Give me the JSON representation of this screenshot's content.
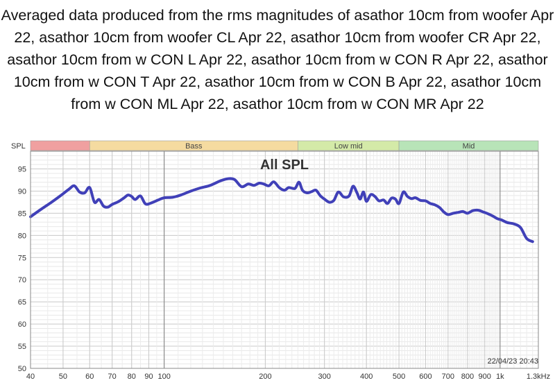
{
  "chart_data": {
    "type": "line",
    "title": "Averaged data produced from the rms magnitudes of asathor 10cm from woofer Apr 22, asathor 10cm from woofer CL Apr 22, asathor 10cm from woofer CR Apr 22, asathor 10cm from w CON L Apr 22, asathor 10cm from w CON R Apr 22, asathor 10cm from w CON T Apr 22, asathor 10cm from w CON B Apr 22, asathor 10cm from w CON ML Apr 22, asathor 10cm from w CON MR Apr 22",
    "plot_label": "All SPL",
    "ylabel": "SPL",
    "x_scale": "log",
    "xlim": [
      40,
      1300
    ],
    "ylim": [
      50,
      99
    ],
    "grid": true,
    "timestamp": "22/04/23 20:43",
    "line_color": "#4040b8",
    "x_ticks": [
      {
        "value": 40,
        "label": "40"
      },
      {
        "value": 50,
        "label": "50"
      },
      {
        "value": 60,
        "label": "60"
      },
      {
        "value": 70,
        "label": "70"
      },
      {
        "value": 80,
        "label": "80"
      },
      {
        "value": 90,
        "label": "90"
      },
      {
        "value": 100,
        "label": "100"
      },
      {
        "value": 200,
        "label": "200"
      },
      {
        "value": 300,
        "label": "300"
      },
      {
        "value": 400,
        "label": "400"
      },
      {
        "value": 500,
        "label": "500"
      },
      {
        "value": 600,
        "label": "600"
      },
      {
        "value": 700,
        "label": "700"
      },
      {
        "value": 800,
        "label": "800"
      },
      {
        "value": 900,
        "label": "900"
      },
      {
        "value": 1000,
        "label": "1k"
      },
      {
        "value": 1300,
        "label": "1.3kHz"
      }
    ],
    "y_ticks": [
      50,
      55,
      60,
      65,
      70,
      75,
      80,
      85,
      90,
      95
    ],
    "bands": [
      {
        "name": "",
        "from": 40,
        "to": 60,
        "color": "#f0a0a0"
      },
      {
        "name": "Bass",
        "from": 60,
        "to": 250,
        "color": "#f5dba0"
      },
      {
        "name": "Low mid",
        "from": 250,
        "to": 500,
        "color": "#d4eaa8"
      },
      {
        "name": "Mid",
        "from": 500,
        "to": 1300,
        "color": "#b8e4b8"
      }
    ],
    "series": [
      {
        "x": [
          40,
          43,
          46,
          49,
          52,
          54,
          56,
          58,
          60,
          62,
          64,
          66,
          68,
          70,
          73,
          76,
          78,
          80,
          82,
          85,
          88,
          92,
          96,
          100,
          106,
          112,
          120,
          128,
          136,
          142,
          148,
          155,
          162,
          170,
          178,
          185,
          192,
          198,
          205,
          212,
          220,
          228,
          235,
          245,
          252,
          258,
          266,
          275,
          283,
          292,
          300,
          310,
          320,
          330,
          342,
          355,
          365,
          375,
          383,
          392,
          400,
          412,
          424,
          436,
          450,
          462,
          475,
          488,
          500,
          515,
          530,
          545,
          560,
          580,
          600,
          620,
          640,
          660,
          680,
          700,
          725,
          750,
          775,
          800,
          830,
          860,
          890,
          920,
          950,
          980,
          1010,
          1050,
          1100,
          1150,
          1200,
          1250
        ],
        "y": [
          84.2,
          85.9,
          87.4,
          88.9,
          90.4,
          91.2,
          89.8,
          89.6,
          90.8,
          87.5,
          88.1,
          86.6,
          86.4,
          87.0,
          87.6,
          88.5,
          89.1,
          88.8,
          88.1,
          88.9,
          87.1,
          87.4,
          88.0,
          88.5,
          88.6,
          89.1,
          90.0,
          90.7,
          91.2,
          91.8,
          92.4,
          92.8,
          92.6,
          91.0,
          91.6,
          91.3,
          91.8,
          91.6,
          91.2,
          92.1,
          90.8,
          90.2,
          90.8,
          90.6,
          92.0,
          90.2,
          89.6,
          89.9,
          90.2,
          88.9,
          88.2,
          87.5,
          87.9,
          89.8,
          88.7,
          88.9,
          91.1,
          89.6,
          88.2,
          89.8,
          87.7,
          89.2,
          88.8,
          87.8,
          88.0,
          87.2,
          88.4,
          88.2,
          87.2,
          89.8,
          88.8,
          88.3,
          88.5,
          87.9,
          87.8,
          87.2,
          86.9,
          86.3,
          85.3,
          84.7,
          85.0,
          85.2,
          85.4,
          85.0,
          85.6,
          85.7,
          85.3,
          84.9,
          84.4,
          83.8,
          83.5,
          82.9,
          82.6,
          81.8,
          79.3,
          78.6
        ]
      }
    ]
  }
}
